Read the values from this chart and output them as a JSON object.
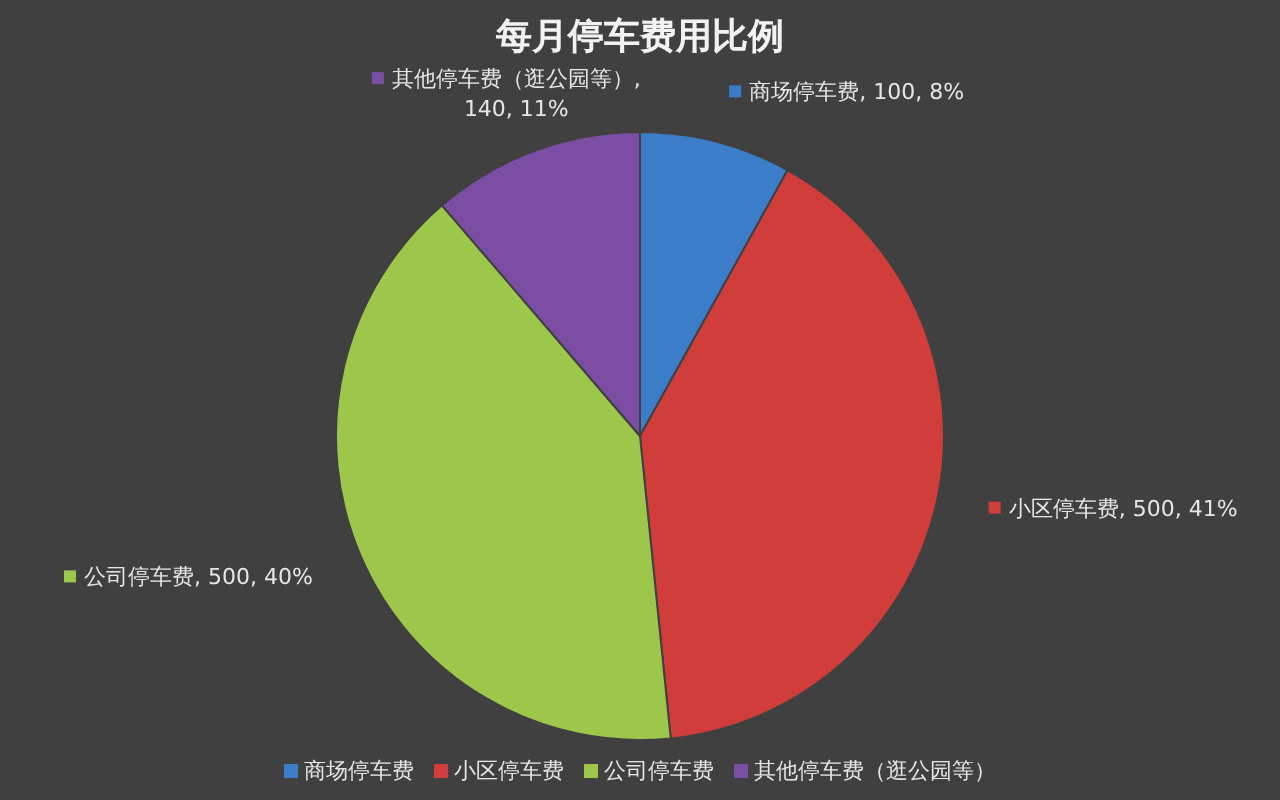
{
  "chart_data": {
    "type": "pie",
    "title": "每月停车费用比例",
    "categories": [
      "商场停车费",
      "小区停车费",
      "公司停车费",
      "其他停车费（逛公园等）"
    ],
    "values": [
      100,
      500,
      500,
      140
    ],
    "colors": [
      "#3b7dc8",
      "#d13d3a",
      "#9cc74b",
      "#7b4ea3"
    ],
    "value_labels": [
      "商场停车费, 100, 8%",
      "小区停车费, 500, 41%",
      "公司停车费, 500, 40%",
      "其他停车费（逛公园等）, 140, 11%"
    ],
    "legend": "bottom"
  }
}
